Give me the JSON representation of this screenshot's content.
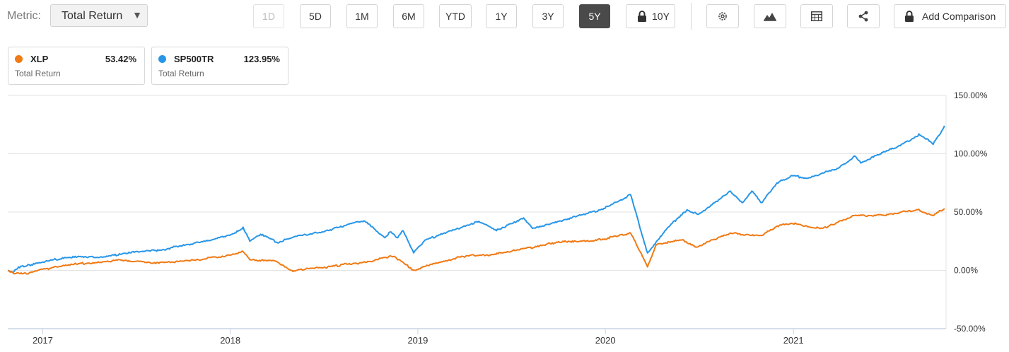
{
  "toolbar": {
    "metric_label": "Metric:",
    "metric_value": "Total Return",
    "ranges": [
      {
        "label": "1D",
        "state": "disabled"
      },
      {
        "label": "5D",
        "state": "normal"
      },
      {
        "label": "1M",
        "state": "normal"
      },
      {
        "label": "6M",
        "state": "normal"
      },
      {
        "label": "YTD",
        "state": "normal"
      },
      {
        "label": "1Y",
        "state": "normal"
      },
      {
        "label": "3Y",
        "state": "normal"
      },
      {
        "label": "5Y",
        "state": "active"
      },
      {
        "label": "10Y",
        "state": "locked"
      }
    ],
    "icons": [
      "gear-icon",
      "mountain-chart-icon",
      "table-icon",
      "share-icon",
      "lock-icon"
    ],
    "add_comparison": "Add Comparison"
  },
  "legend": [
    {
      "symbol": "XLP",
      "value": "53.42%",
      "sublabel": "Total Return",
      "color": "#f07a14"
    },
    {
      "symbol": "SP500TR",
      "value": "123.95%",
      "sublabel": "Total Return",
      "color": "#2896e8"
    }
  ],
  "chart_data": {
    "type": "line",
    "title": "",
    "xlabel": "",
    "ylabel": "",
    "x_tick_labels": [
      "2017",
      "2018",
      "2019",
      "2020",
      "2021"
    ],
    "y_tick_labels": [
      "150.00%",
      "100.00%",
      "50.00%",
      "0.00%",
      "-50.00%"
    ],
    "y_ticks": [
      150,
      100,
      50,
      0,
      -50
    ],
    "ylim": [
      -50,
      150
    ],
    "xlim": [
      "2016-10-25",
      "2021-10-25"
    ],
    "grid": true,
    "series": [
      {
        "name": "SP500TR",
        "color": "#2896e8",
        "points": [
          [
            "2016-10-25",
            0
          ],
          [
            "2016-11-04",
            -2
          ],
          [
            "2016-11-15",
            3
          ],
          [
            "2016-12-31",
            7
          ],
          [
            "2017-03-01",
            12
          ],
          [
            "2017-04-15",
            11
          ],
          [
            "2017-06-30",
            16
          ],
          [
            "2017-08-15",
            17
          ],
          [
            "2017-10-31",
            24
          ],
          [
            "2017-12-31",
            30
          ],
          [
            "2018-01-26",
            37
          ],
          [
            "2018-02-08",
            25
          ],
          [
            "2018-03-01",
            31
          ],
          [
            "2018-04-02",
            24
          ],
          [
            "2018-05-15",
            30
          ],
          [
            "2018-06-30",
            33
          ],
          [
            "2018-08-31",
            41
          ],
          [
            "2018-09-20",
            42
          ],
          [
            "2018-10-10",
            35
          ],
          [
            "2018-10-29",
            28
          ],
          [
            "2018-11-08",
            33
          ],
          [
            "2018-11-23",
            28
          ],
          [
            "2018-12-03",
            34
          ],
          [
            "2018-12-24",
            15
          ],
          [
            "2019-01-15",
            26
          ],
          [
            "2019-02-28",
            33
          ],
          [
            "2019-04-30",
            42
          ],
          [
            "2019-06-03",
            34
          ],
          [
            "2019-07-26",
            45
          ],
          [
            "2019-08-12",
            36
          ],
          [
            "2019-09-30",
            42
          ],
          [
            "2019-12-31",
            53
          ],
          [
            "2020-02-19",
            65
          ],
          [
            "2020-03-23",
            15
          ],
          [
            "2020-04-30",
            36
          ],
          [
            "2020-06-08",
            52
          ],
          [
            "2020-06-30",
            48
          ],
          [
            "2020-08-31",
            68
          ],
          [
            "2020-09-23",
            58
          ],
          [
            "2020-10-12",
            68
          ],
          [
            "2020-10-30",
            58
          ],
          [
            "2020-11-30",
            75
          ],
          [
            "2020-12-31",
            81
          ],
          [
            "2021-01-29",
            79
          ],
          [
            "2021-03-31",
            88
          ],
          [
            "2021-04-30",
            98
          ],
          [
            "2021-05-12",
            92
          ],
          [
            "2021-06-30",
            102
          ],
          [
            "2021-07-30",
            108
          ],
          [
            "2021-08-31",
            115
          ],
          [
            "2021-09-02",
            117
          ],
          [
            "2021-09-30",
            108
          ],
          [
            "2021-10-22",
            124
          ]
        ]
      },
      {
        "name": "XLP",
        "color": "#f07a14",
        "points": [
          [
            "2016-10-25",
            0
          ],
          [
            "2016-11-04",
            -2
          ],
          [
            "2016-11-30",
            -3
          ],
          [
            "2016-12-31",
            1
          ],
          [
            "2017-03-01",
            5
          ],
          [
            "2017-06-01",
            9
          ],
          [
            "2017-08-15",
            6
          ],
          [
            "2017-10-31",
            9
          ],
          [
            "2017-12-31",
            13
          ],
          [
            "2018-01-26",
            16
          ],
          [
            "2018-02-08",
            9
          ],
          [
            "2018-03-30",
            8
          ],
          [
            "2018-05-01",
            0
          ],
          [
            "2018-06-15",
            2
          ],
          [
            "2018-08-31",
            6
          ],
          [
            "2018-10-10",
            9
          ],
          [
            "2018-11-15",
            12
          ],
          [
            "2018-12-24",
            0
          ],
          [
            "2019-01-31",
            6
          ],
          [
            "2019-03-29",
            12
          ],
          [
            "2019-05-31",
            14
          ],
          [
            "2019-07-31",
            19
          ],
          [
            "2019-09-30",
            24
          ],
          [
            "2019-11-29",
            25
          ],
          [
            "2019-12-31",
            27
          ],
          [
            "2020-02-19",
            32
          ],
          [
            "2020-02-28",
            25
          ],
          [
            "2020-03-23",
            3
          ],
          [
            "2020-04-09",
            22
          ],
          [
            "2020-05-29",
            26
          ],
          [
            "2020-06-26",
            20
          ],
          [
            "2020-08-31",
            32
          ],
          [
            "2020-10-30",
            30
          ],
          [
            "2020-11-30",
            38
          ],
          [
            "2020-12-31",
            40
          ],
          [
            "2021-02-26",
            36
          ],
          [
            "2021-04-30",
            47
          ],
          [
            "2021-06-30",
            47
          ],
          [
            "2021-07-30",
            50
          ],
          [
            "2021-08-31",
            52
          ],
          [
            "2021-09-30",
            47
          ],
          [
            "2021-10-22",
            53
          ]
        ]
      }
    ]
  }
}
